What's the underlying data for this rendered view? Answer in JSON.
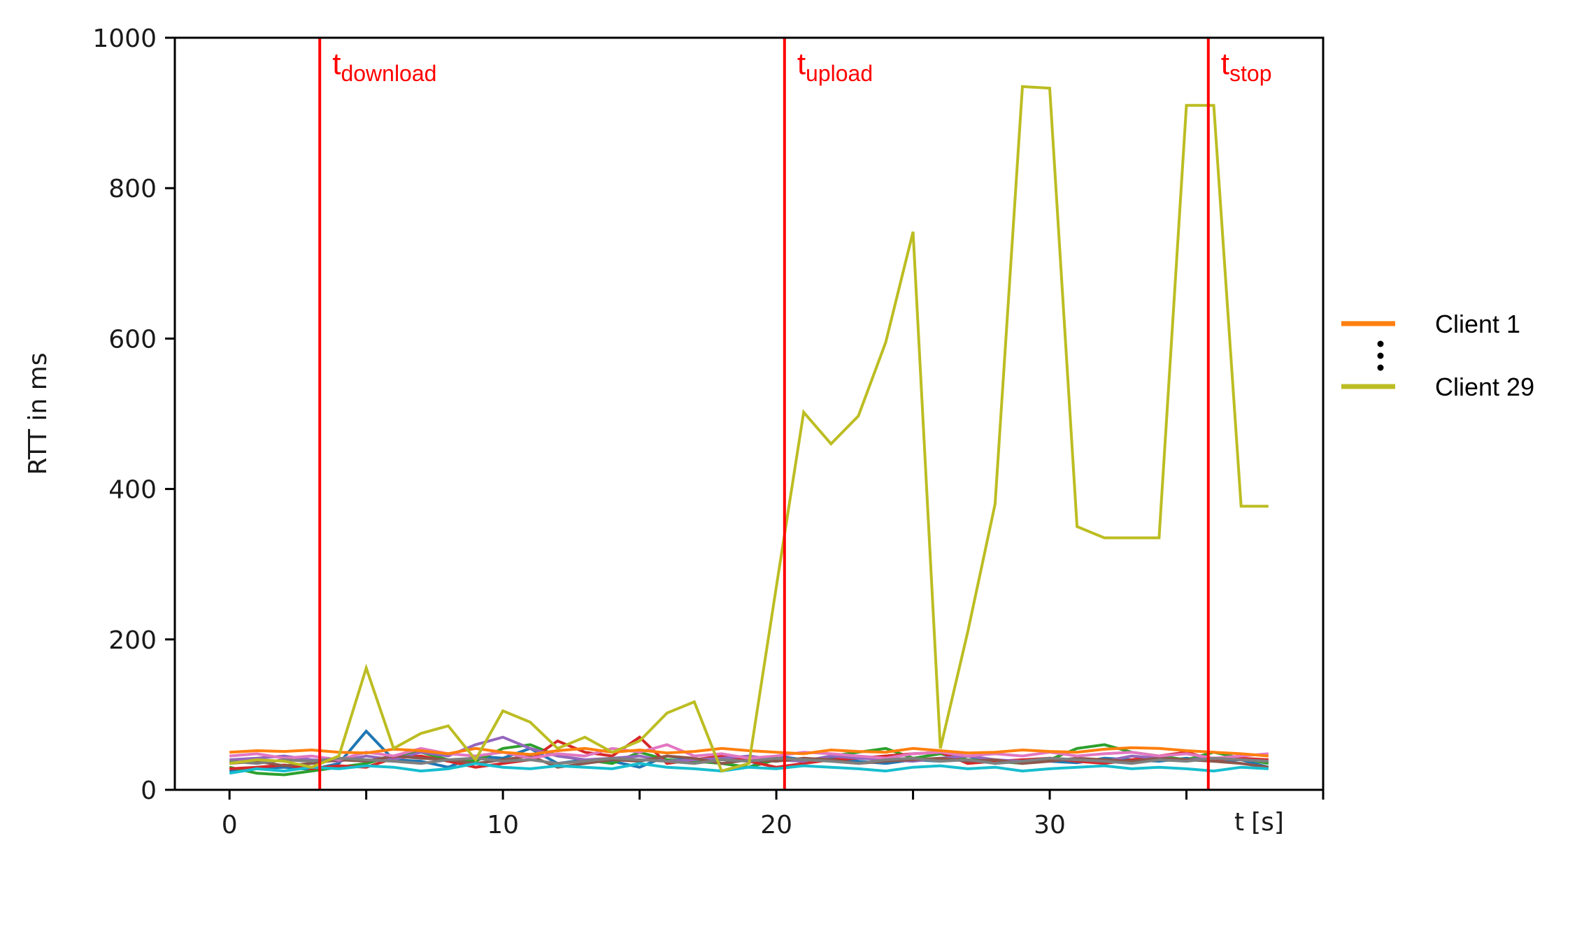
{
  "chart_data": {
    "type": "line",
    "ylabel": "RTT in ms",
    "xlabel_main": "t",
    "xlabel_unit": "[s]",
    "xlim": [
      -2,
      40
    ],
    "ylim": [
      0,
      1000
    ],
    "xticks": [
      0,
      10,
      20,
      30
    ],
    "yticks": [
      0,
      200,
      400,
      600,
      800,
      1000
    ],
    "grid": false,
    "axis_color": "#000000",
    "markers": [
      {
        "base": "t",
        "sub": "download",
        "x": 3.3
      },
      {
        "base": "t",
        "sub": "upload",
        "x": 20.3
      },
      {
        "base": "t",
        "sub": "stop",
        "x": 35.8
      }
    ],
    "marker_color": "#ff0000",
    "legend": {
      "placement": "right",
      "entries": [
        {
          "label": "Client 1",
          "color": "#ff7f0e"
        },
        {
          "label": "Client 29",
          "color": "#bcbd22"
        }
      ],
      "ellipsis": "⋮"
    },
    "x": [
      0,
      1,
      2,
      3,
      4,
      5,
      6,
      7,
      8,
      9,
      10,
      11,
      12,
      13,
      14,
      15,
      16,
      17,
      18,
      19,
      20,
      21,
      22,
      23,
      24,
      25,
      26,
      27,
      28,
      29,
      30,
      31,
      32,
      33,
      34,
      35,
      36,
      37,
      38
    ],
    "series": [
      {
        "name": "Client 1",
        "color": "#ff7f0e",
        "values": [
          50,
          52,
          51,
          53,
          50,
          49,
          54,
          52,
          48,
          55,
          50,
          47,
          52,
          55,
          50,
          53,
          49,
          51,
          55,
          52,
          50,
          48,
          53,
          51,
          50,
          55,
          52,
          49,
          50,
          53,
          51,
          50,
          54,
          56,
          55,
          52,
          50,
          48,
          45
        ]
      },
      {
        "name": "Client 29",
        "color": "#bcbd22",
        "values": [
          35,
          40,
          38,
          30,
          45,
          162,
          55,
          75,
          85,
          40,
          105,
          90,
          55,
          70,
          50,
          65,
          102,
          117,
          25,
          35,
          270,
          502,
          460,
          497,
          595,
          742,
          55,
          210,
          380,
          935,
          933,
          350,
          335,
          335,
          335,
          910,
          910,
          377,
          377
        ]
      },
      {
        "color": "#1f77b4",
        "values": [
          25,
          28,
          30,
          27,
          35,
          78,
          40,
          38,
          30,
          45,
          42,
          55,
          35,
          40,
          38,
          30,
          45,
          40,
          35,
          30,
          45,
          40,
          42,
          38,
          35,
          40,
          38,
          45,
          35,
          40,
          38,
          36,
          42,
          40,
          38,
          42,
          38,
          40,
          30
        ]
      },
      {
        "color": "#2ca02c",
        "values": [
          30,
          22,
          20,
          25,
          30,
          35,
          45,
          50,
          40,
          38,
          55,
          60,
          45,
          40,
          35,
          50,
          40,
          38,
          35,
          30,
          40,
          38,
          45,
          50,
          55,
          42,
          48,
          40,
          38,
          35,
          40,
          55,
          60,
          50,
          45,
          40,
          50,
          42,
          35
        ]
      },
      {
        "color": "#d62728",
        "values": [
          28,
          30,
          33,
          28,
          32,
          30,
          42,
          45,
          38,
          30,
          35,
          40,
          65,
          50,
          45,
          70,
          35,
          40,
          45,
          38,
          30,
          35,
          40,
          42,
          45,
          48,
          50,
          35,
          38,
          40,
          42,
          38,
          35,
          40,
          45,
          50,
          40,
          42,
          40
        ]
      },
      {
        "color": "#9467bd",
        "values": [
          40,
          42,
          45,
          40,
          38,
          45,
          40,
          50,
          45,
          60,
          70,
          55,
          45,
          40,
          42,
          45,
          38,
          40,
          42,
          45,
          40,
          38,
          45,
          42,
          40,
          38,
          42,
          45,
          40,
          38,
          42,
          40,
          38,
          45,
          42,
          40,
          42,
          40,
          38
        ]
      },
      {
        "color": "#8c564b",
        "values": [
          35,
          38,
          32,
          35,
          40,
          38,
          45,
          42,
          40,
          35,
          40,
          45,
          30,
          35,
          40,
          38,
          45,
          42,
          35,
          40,
          38,
          42,
          40,
          35,
          38,
          40,
          42,
          38,
          40,
          35,
          38,
          42,
          40,
          38,
          42,
          40,
          38,
          35,
          30
        ]
      },
      {
        "color": "#e377c2",
        "values": [
          45,
          48,
          42,
          45,
          40,
          50,
          45,
          55,
          48,
          45,
          50,
          42,
          48,
          45,
          55,
          50,
          60,
          45,
          48,
          42,
          45,
          50,
          48,
          45,
          42,
          48,
          50,
          45,
          48,
          45,
          50,
          45,
          48,
          50,
          45,
          48,
          42,
          45,
          48
        ]
      },
      {
        "color": "#7f7f7f",
        "values": [
          38,
          35,
          40,
          38,
          42,
          40,
          38,
          35,
          40,
          42,
          38,
          40,
          35,
          38,
          42,
          40,
          38,
          35,
          40,
          38,
          42,
          40,
          38,
          35,
          40,
          42,
          38,
          40,
          35,
          38,
          42,
          40,
          38,
          35,
          40,
          38,
          42,
          40,
          38
        ]
      },
      {
        "color": "#17becf",
        "values": [
          22,
          28,
          25,
          30,
          28,
          32,
          30,
          25,
          28,
          35,
          30,
          28,
          32,
          30,
          28,
          35,
          30,
          28,
          25,
          30,
          28,
          32,
          30,
          28,
          25,
          30,
          32,
          28,
          30,
          25,
          28,
          30,
          32,
          28,
          30,
          28,
          25,
          30,
          28
        ]
      }
    ]
  }
}
